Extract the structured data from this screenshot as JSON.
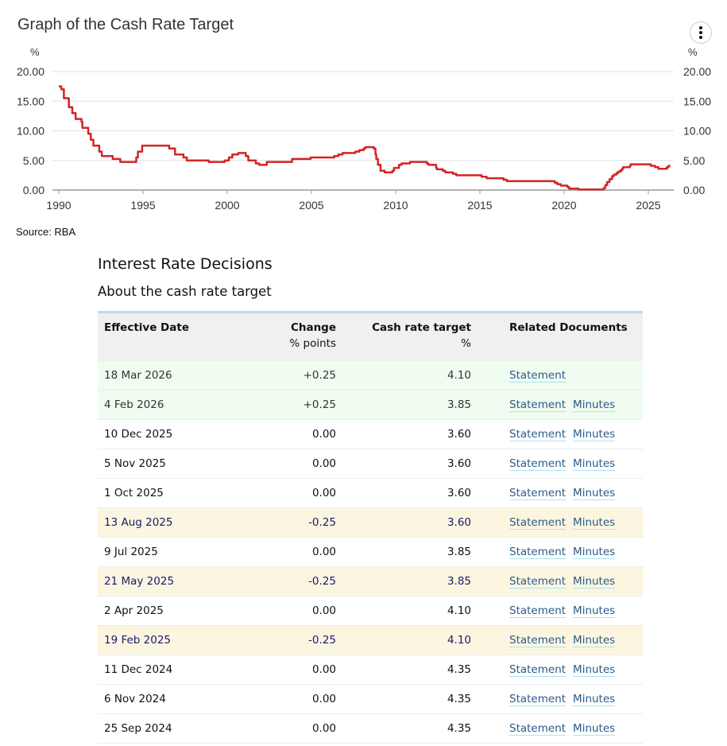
{
  "chart_data": {
    "type": "line",
    "title": "Graph of the Cash Rate Target",
    "ylabel_left": "%",
    "ylabel_right": "%",
    "xlabel": "",
    "ylim": [
      0,
      20
    ],
    "xlim": [
      1990,
      2026.5
    ],
    "y_ticks": [
      "20.00",
      "15.00",
      "10.00",
      "5.00",
      "0.00"
    ],
    "y_tick_values": [
      20,
      15,
      10,
      5,
      0
    ],
    "x_ticks": [
      "1990",
      "1995",
      "2000",
      "2005",
      "2010",
      "2015",
      "2020",
      "2025"
    ],
    "x_tick_values": [
      1990,
      1995,
      2000,
      2005,
      2010,
      2015,
      2020,
      2025
    ],
    "grid": true,
    "line_color": "#d42424",
    "series": [
      {
        "name": "Cash rate target",
        "step": true,
        "points": [
          [
            1990.0,
            17.5
          ],
          [
            1990.15,
            17.0
          ],
          [
            1990.3,
            15.5
          ],
          [
            1990.6,
            14.0
          ],
          [
            1990.8,
            13.0
          ],
          [
            1991.0,
            12.0
          ],
          [
            1991.35,
            11.5
          ],
          [
            1991.4,
            10.5
          ],
          [
            1991.75,
            9.5
          ],
          [
            1991.9,
            8.5
          ],
          [
            1992.05,
            7.5
          ],
          [
            1992.4,
            6.5
          ],
          [
            1992.55,
            5.75
          ],
          [
            1993.2,
            5.25
          ],
          [
            1993.65,
            4.75
          ],
          [
            1994.6,
            5.5
          ],
          [
            1994.7,
            6.5
          ],
          [
            1994.95,
            7.5
          ],
          [
            1996.55,
            7.0
          ],
          [
            1996.9,
            6.0
          ],
          [
            1997.4,
            5.5
          ],
          [
            1997.6,
            5.0
          ],
          [
            1998.9,
            4.75
          ],
          [
            1999.85,
            5.0
          ],
          [
            2000.1,
            5.5
          ],
          [
            2000.3,
            6.0
          ],
          [
            2000.65,
            6.25
          ],
          [
            2001.1,
            5.75
          ],
          [
            2001.25,
            5.0
          ],
          [
            2001.7,
            4.5
          ],
          [
            2001.9,
            4.25
          ],
          [
            2002.35,
            4.75
          ],
          [
            2003.85,
            5.25
          ],
          [
            2004.95,
            5.5
          ],
          [
            2006.35,
            5.75
          ],
          [
            2006.6,
            6.0
          ],
          [
            2006.85,
            6.25
          ],
          [
            2007.6,
            6.5
          ],
          [
            2007.85,
            6.75
          ],
          [
            2008.1,
            7.0
          ],
          [
            2008.2,
            7.25
          ],
          [
            2008.7,
            7.0
          ],
          [
            2008.8,
            6.0
          ],
          [
            2008.85,
            5.25
          ],
          [
            2008.95,
            4.25
          ],
          [
            2009.1,
            3.25
          ],
          [
            2009.35,
            3.0
          ],
          [
            2009.8,
            3.25
          ],
          [
            2009.9,
            3.75
          ],
          [
            2010.2,
            4.25
          ],
          [
            2010.35,
            4.5
          ],
          [
            2010.85,
            4.75
          ],
          [
            2011.85,
            4.5
          ],
          [
            2011.95,
            4.25
          ],
          [
            2012.4,
            3.75
          ],
          [
            2012.45,
            3.5
          ],
          [
            2012.8,
            3.25
          ],
          [
            2012.95,
            3.0
          ],
          [
            2013.4,
            2.75
          ],
          [
            2013.6,
            2.5
          ],
          [
            2015.1,
            2.25
          ],
          [
            2015.4,
            2.0
          ],
          [
            2016.4,
            1.75
          ],
          [
            2016.6,
            1.5
          ],
          [
            2019.45,
            1.25
          ],
          [
            2019.6,
            1.0
          ],
          [
            2019.8,
            0.75
          ],
          [
            2020.2,
            0.5
          ],
          [
            2020.3,
            0.25
          ],
          [
            2020.85,
            0.1
          ],
          [
            2022.35,
            0.35
          ],
          [
            2022.45,
            0.85
          ],
          [
            2022.55,
            1.35
          ],
          [
            2022.7,
            1.85
          ],
          [
            2022.85,
            2.35
          ],
          [
            2022.95,
            2.6
          ],
          [
            2023.1,
            2.85
          ],
          [
            2023.2,
            3.1
          ],
          [
            2023.35,
            3.35
          ],
          [
            2023.45,
            3.6
          ],
          [
            2023.5,
            3.85
          ],
          [
            2023.9,
            4.1
          ],
          [
            2023.95,
            4.35
          ],
          [
            2025.15,
            4.1
          ],
          [
            2025.4,
            3.85
          ],
          [
            2025.6,
            3.6
          ],
          [
            2026.1,
            3.85
          ],
          [
            2026.2,
            4.1
          ],
          [
            2026.3,
            4.1
          ]
        ]
      }
    ]
  },
  "header": {
    "title": "Graph of the Cash Rate Target",
    "menu_icon": "vertical-ellipsis-icon"
  },
  "source": "Source: RBA",
  "section": {
    "title": "Interest Rate Decisions",
    "subtitle": "About the cash rate target"
  },
  "table": {
    "columns": [
      {
        "label": "Effective Date",
        "sub": ""
      },
      {
        "label": "Change",
        "sub": "% points"
      },
      {
        "label": "Cash rate target",
        "sub": "%"
      },
      {
        "label": "Related Documents",
        "sub": ""
      }
    ],
    "rows": [
      {
        "date": "18 Mar 2026",
        "change": "+0.25",
        "rate": "4.10",
        "docs": [
          "Statement"
        ],
        "kind": "up"
      },
      {
        "date": "4 Feb 2026",
        "change": "+0.25",
        "rate": "3.85",
        "docs": [
          "Statement",
          "Minutes"
        ],
        "kind": "up"
      },
      {
        "date": "10 Dec 2025",
        "change": "0.00",
        "rate": "3.60",
        "docs": [
          "Statement",
          "Minutes"
        ],
        "kind": "flat"
      },
      {
        "date": "5 Nov 2025",
        "change": "0.00",
        "rate": "3.60",
        "docs": [
          "Statement",
          "Minutes"
        ],
        "kind": "flat"
      },
      {
        "date": "1 Oct 2025",
        "change": "0.00",
        "rate": "3.60",
        "docs": [
          "Statement",
          "Minutes"
        ],
        "kind": "flat"
      },
      {
        "date": "13 Aug 2025",
        "change": "-0.25",
        "rate": "3.60",
        "docs": [
          "Statement",
          "Minutes"
        ],
        "kind": "down"
      },
      {
        "date": "9 Jul 2025",
        "change": "0.00",
        "rate": "3.85",
        "docs": [
          "Statement",
          "Minutes"
        ],
        "kind": "flat"
      },
      {
        "date": "21 May 2025",
        "change": "-0.25",
        "rate": "3.85",
        "docs": [
          "Statement",
          "Minutes"
        ],
        "kind": "down"
      },
      {
        "date": "2 Apr 2025",
        "change": "0.00",
        "rate": "4.10",
        "docs": [
          "Statement",
          "Minutes"
        ],
        "kind": "flat"
      },
      {
        "date": "19 Feb 2025",
        "change": "-0.25",
        "rate": "4.10",
        "docs": [
          "Statement",
          "Minutes"
        ],
        "kind": "down"
      },
      {
        "date": "11 Dec 2024",
        "change": "0.00",
        "rate": "4.35",
        "docs": [
          "Statement",
          "Minutes"
        ],
        "kind": "flat"
      },
      {
        "date": "6 Nov 2024",
        "change": "0.00",
        "rate": "4.35",
        "docs": [
          "Statement",
          "Minutes"
        ],
        "kind": "flat"
      },
      {
        "date": "25 Sep 2024",
        "change": "0.00",
        "rate": "4.35",
        "docs": [
          "Statement",
          "Minutes"
        ],
        "kind": "flat"
      }
    ]
  },
  "colors": {
    "line": "#d42424",
    "row_increase_bg": "#f0fcf0",
    "row_decrease_bg": "#fcf6e0",
    "link": "#2a5a8a",
    "table_top_border": "#bcd8f2"
  }
}
